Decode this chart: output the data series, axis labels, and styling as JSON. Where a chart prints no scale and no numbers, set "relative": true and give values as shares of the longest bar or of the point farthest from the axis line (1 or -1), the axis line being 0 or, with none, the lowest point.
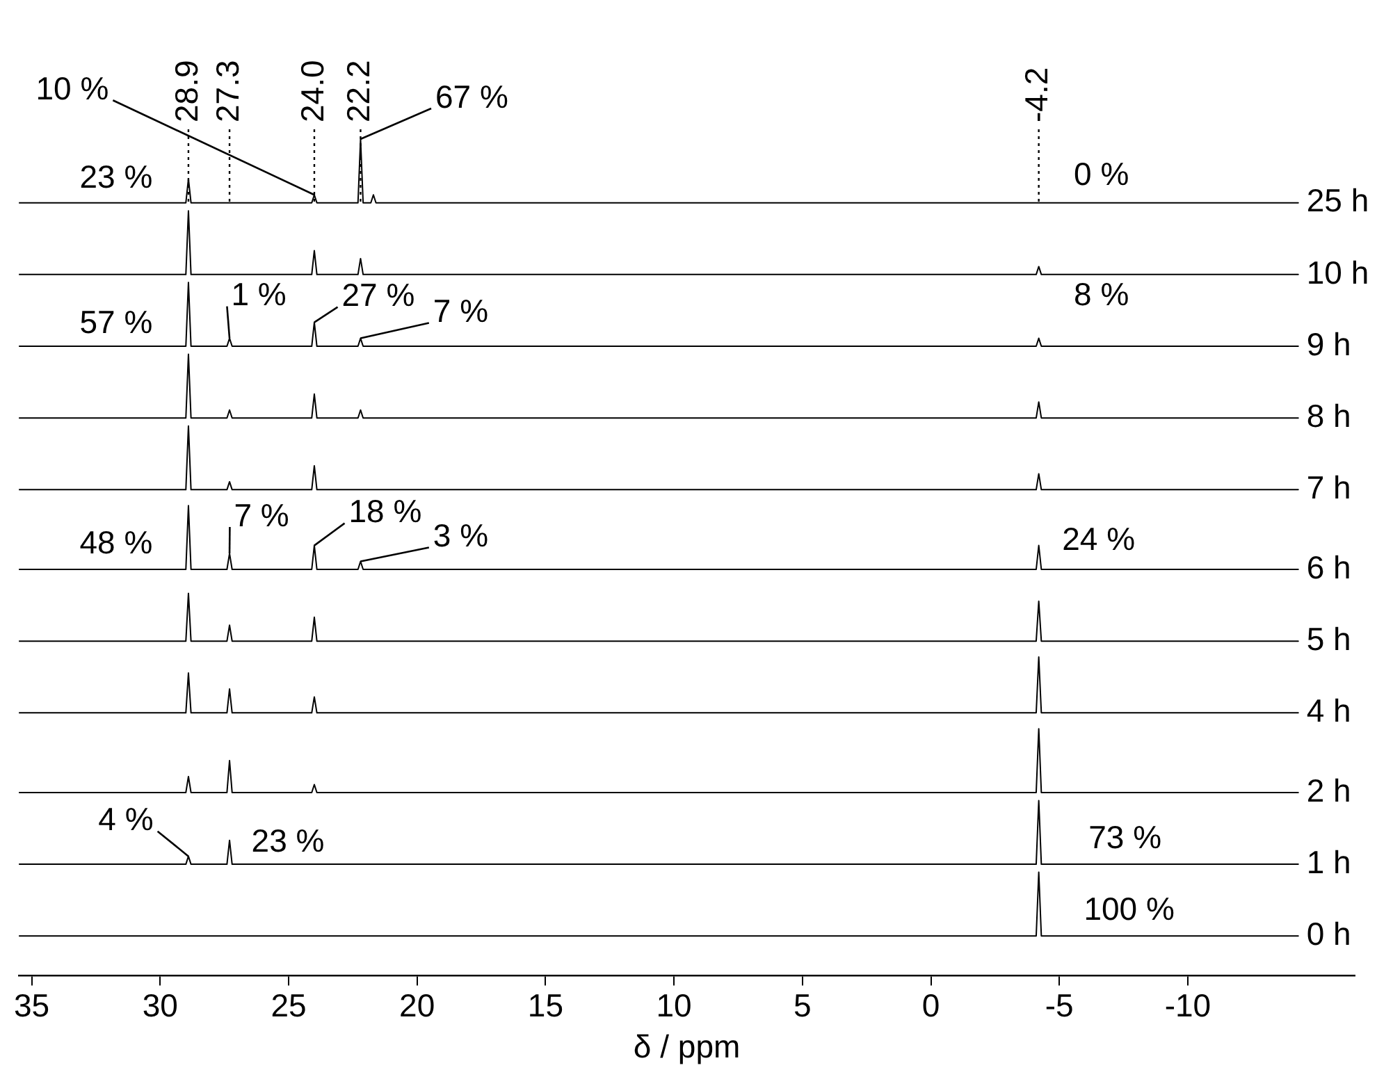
{
  "chart_data": {
    "type": "line",
    "relative": true,
    "xlabel": "δ / ppm",
    "xlim": [
      35.5,
      -16.5
    ],
    "xticks": [
      35,
      30,
      25,
      20,
      15,
      10,
      5,
      0,
      -5,
      -10
    ],
    "grid": false,
    "legend": false,
    "marker": "none",
    "line_style": "solid",
    "series": [
      {
        "name": "25 h",
        "color": "#000000",
        "x": [
          35.5,
          29.0,
          28.9,
          28.8,
          24.1,
          24.0,
          23.9,
          22.3,
          22.2,
          22.1,
          21.8,
          21.7,
          21.6,
          -14.3
        ],
        "values": [
          0.92,
          0.92,
          0.95,
          0.92,
          0.92,
          0.93,
          0.92,
          0.92,
          1.0,
          0.92,
          0.92,
          0.93,
          0.92,
          0.92
        ]
      },
      {
        "name": "10 h",
        "color": "#000000",
        "x": [
          35.5,
          29.0,
          28.9,
          28.8,
          24.1,
          24.0,
          23.9,
          22.3,
          22.2,
          22.1,
          -4.1,
          -4.2,
          -4.3,
          -14.3
        ],
        "values": [
          0.83,
          0.83,
          0.91,
          0.83,
          0.83,
          0.86,
          0.83,
          0.83,
          0.85,
          0.83,
          0.83,
          0.84,
          0.83,
          0.83
        ]
      },
      {
        "name": "9 h",
        "color": "#000000",
        "x": [
          35.5,
          29.0,
          28.9,
          28.8,
          27.4,
          27.3,
          27.2,
          24.1,
          24.0,
          23.9,
          22.3,
          22.2,
          22.1,
          -4.1,
          -4.2,
          -4.3,
          -14.3
        ],
        "values": [
          0.74,
          0.74,
          0.82,
          0.74,
          0.74,
          0.75,
          0.74,
          0.74,
          0.77,
          0.74,
          0.74,
          0.75,
          0.74,
          0.74,
          0.75,
          0.74,
          0.74
        ]
      },
      {
        "name": "8 h",
        "color": "#000000",
        "x": [
          35.5,
          29.0,
          28.9,
          28.8,
          27.4,
          27.3,
          27.2,
          24.1,
          24.0,
          23.9,
          22.3,
          22.2,
          22.1,
          -4.1,
          -4.2,
          -4.3,
          -14.3
        ],
        "values": [
          0.65,
          0.65,
          0.73,
          0.65,
          0.65,
          0.66,
          0.65,
          0.65,
          0.68,
          0.65,
          0.65,
          0.66,
          0.65,
          0.65,
          0.67,
          0.65,
          0.65
        ]
      },
      {
        "name": "7 h",
        "color": "#000000",
        "x": [
          35.5,
          29.0,
          28.9,
          28.8,
          27.4,
          27.3,
          27.2,
          24.1,
          24.0,
          23.9,
          -4.1,
          -4.2,
          -4.3,
          -14.3
        ],
        "values": [
          0.56,
          0.56,
          0.64,
          0.56,
          0.56,
          0.57,
          0.56,
          0.56,
          0.59,
          0.56,
          0.56,
          0.58,
          0.56,
          0.56
        ]
      },
      {
        "name": "6 h",
        "color": "#000000",
        "x": [
          35.5,
          29.0,
          28.9,
          28.8,
          27.4,
          27.3,
          27.2,
          24.1,
          24.0,
          23.9,
          22.3,
          22.2,
          22.1,
          -4.1,
          -4.2,
          -4.3,
          -14.3
        ],
        "values": [
          0.46,
          0.46,
          0.54,
          0.46,
          0.46,
          0.48,
          0.46,
          0.46,
          0.49,
          0.46,
          0.46,
          0.47,
          0.46,
          0.46,
          0.49,
          0.46,
          0.46
        ]
      },
      {
        "name": "5 h",
        "color": "#000000",
        "x": [
          35.5,
          29.0,
          28.9,
          28.8,
          27.4,
          27.3,
          27.2,
          24.1,
          24.0,
          23.9,
          -4.1,
          -4.2,
          -4.3,
          -14.3
        ],
        "values": [
          0.37,
          0.37,
          0.43,
          0.37,
          0.37,
          0.39,
          0.37,
          0.37,
          0.4,
          0.37,
          0.37,
          0.42,
          0.37,
          0.37
        ]
      },
      {
        "name": "4 h",
        "color": "#000000",
        "x": [
          35.5,
          29.0,
          28.9,
          28.8,
          27.4,
          27.3,
          27.2,
          24.1,
          24.0,
          23.9,
          -4.1,
          -4.2,
          -4.3,
          -14.3
        ],
        "values": [
          0.28,
          0.28,
          0.33,
          0.28,
          0.28,
          0.31,
          0.28,
          0.28,
          0.3,
          0.28,
          0.28,
          0.35,
          0.28,
          0.28
        ]
      },
      {
        "name": "2 h",
        "color": "#000000",
        "x": [
          35.5,
          29.0,
          28.9,
          28.8,
          27.4,
          27.3,
          27.2,
          24.1,
          24.0,
          23.9,
          -4.1,
          -4.2,
          -4.3,
          -14.3
        ],
        "values": [
          0.18,
          0.18,
          0.2,
          0.18,
          0.18,
          0.22,
          0.18,
          0.18,
          0.19,
          0.18,
          0.18,
          0.26,
          0.18,
          0.18
        ]
      },
      {
        "name": "1 h",
        "color": "#000000",
        "x": [
          35.5,
          29.0,
          28.9,
          28.8,
          27.4,
          27.3,
          27.2,
          -4.1,
          -4.2,
          -4.3,
          -14.3
        ],
        "values": [
          0.09,
          0.09,
          0.1,
          0.09,
          0.09,
          0.12,
          0.09,
          0.09,
          0.17,
          0.09,
          0.09
        ]
      },
      {
        "name": "0 h",
        "color": "#000000",
        "x": [
          35.5,
          -4.1,
          -4.2,
          -4.3,
          -14.3
        ],
        "values": [
          0,
          0,
          0.08,
          0,
          0
        ]
      }
    ],
    "ref_lines": [
      {
        "axis": "x",
        "value": 28.9,
        "label": "28.9",
        "line_style": "dotted"
      },
      {
        "axis": "x",
        "value": 27.3,
        "label": "27.3",
        "line_style": "dotted"
      },
      {
        "axis": "x",
        "value": 24.0,
        "label": "24.0",
        "line_style": "dotted"
      },
      {
        "axis": "x",
        "value": 22.2,
        "label": "22.2",
        "line_style": "dotted"
      },
      {
        "axis": "x",
        "value": -4.2,
        "label": "-4.2",
        "line_style": "dotted"
      }
    ],
    "annotations": [
      {
        "text": "10 %",
        "x": 24.0,
        "y": 0.93
      },
      {
        "text": "67 %",
        "x": 22.2,
        "y": 1.0
      },
      {
        "text": "23 %",
        "x": 28.9,
        "y": 0.95
      },
      {
        "text": "0 %",
        "x": -4.2,
        "y": 0.92
      },
      {
        "text": "57 %",
        "x": 28.9,
        "y": 0.82
      },
      {
        "text": "1 %",
        "x": 27.3,
        "y": 0.75
      },
      {
        "text": "27 %",
        "x": 24.0,
        "y": 0.77
      },
      {
        "text": "7 %",
        "x": 22.2,
        "y": 0.75
      },
      {
        "text": "8 %",
        "x": -4.2,
        "y": 0.75
      },
      {
        "text": "48 %",
        "x": 28.9,
        "y": 0.54
      },
      {
        "text": "7 %",
        "x": 27.3,
        "y": 0.48
      },
      {
        "text": "18 %",
        "x": 24.0,
        "y": 0.49
      },
      {
        "text": "3 %",
        "x": 22.2,
        "y": 0.47
      },
      {
        "text": "24 %",
        "x": -4.2,
        "y": 0.49
      },
      {
        "text": "4 %",
        "x": 28.9,
        "y": 0.1
      },
      {
        "text": "23 %",
        "x": 27.3,
        "y": 0.12
      },
      {
        "text": "73 %",
        "x": -4.2,
        "y": 0.17
      },
      {
        "text": "100 %",
        "x": -4.2,
        "y": 0.08
      }
    ]
  }
}
